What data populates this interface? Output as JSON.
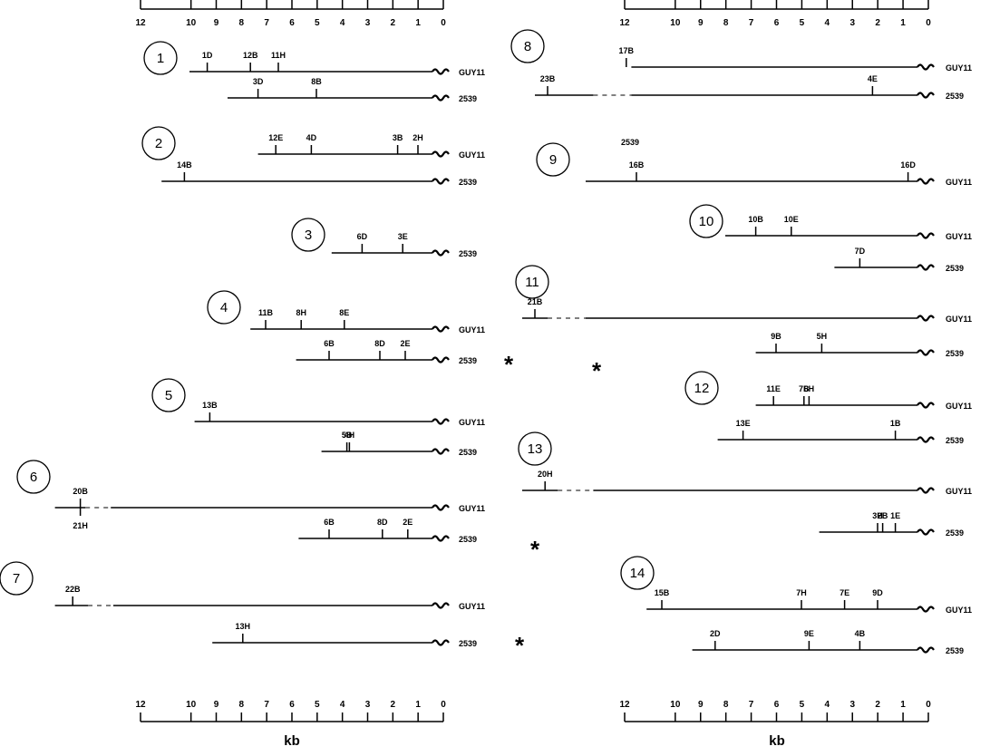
{
  "axis": {
    "unit": "kb",
    "tick_labels": [
      "12",
      "10",
      "9",
      "8",
      "7",
      "6",
      "5",
      "4",
      "3",
      "2",
      "1",
      "0"
    ],
    "tick_values": [
      12,
      10,
      9,
      8,
      7,
      6,
      5,
      4,
      3,
      2,
      1,
      0
    ]
  },
  "panels": [
    {
      "number": "1",
      "column": "left",
      "tracks": [
        {
          "strain": "GUY11",
          "start_kb": 10,
          "gap": false,
          "sites": [
            {
              "label": "1D",
              "kb": 9.3
            },
            {
              "label": "12B",
              "kb": 7.6
            },
            {
              "label": "11H",
              "kb": 6.5
            }
          ]
        },
        {
          "strain": "2539",
          "start_kb": 8.5,
          "gap": false,
          "sites": [
            {
              "label": "3D",
              "kb": 7.3
            },
            {
              "label": "8B",
              "kb": 5
            }
          ]
        }
      ]
    },
    {
      "number": "2",
      "column": "left",
      "tracks": [
        {
          "strain": "GUY11",
          "start_kb": 7.3,
          "gap": false,
          "sites": [
            {
              "label": "12E",
              "kb": 6.6
            },
            {
              "label": "4D",
              "kb": 5.2
            },
            {
              "label": "3B",
              "kb": 1.8
            },
            {
              "label": "2H",
              "kb": 1
            }
          ]
        },
        {
          "strain": "2539",
          "start_kb": 11.1,
          "gap": false,
          "sites": [
            {
              "label": "14B",
              "kb": 10.2
            }
          ]
        }
      ]
    },
    {
      "number": "3",
      "column": "left",
      "tracks": [
        {
          "strain": "2539",
          "start_kb": 4.4,
          "gap": false,
          "sites": [
            {
              "label": "6D",
              "kb": 3.2
            },
            {
              "label": "3E",
              "kb": 1.6
            }
          ]
        }
      ]
    },
    {
      "number": "4",
      "column": "left",
      "tracks": [
        {
          "strain": "GUY11",
          "start_kb": 7.6,
          "gap": false,
          "sites": [
            {
              "label": "11B",
              "kb": 7
            },
            {
              "label": "8H",
              "kb": 5.6
            },
            {
              "label": "8E",
              "kb": 3.9
            }
          ]
        },
        {
          "strain": "2539",
          "start_kb": 5.8,
          "gap": false,
          "sites": [
            {
              "label": "6B",
              "kb": 4.5
            },
            {
              "label": "8D",
              "kb": 2.5
            },
            {
              "label": "2E",
              "kb": 1.5
            }
          ]
        }
      ]
    },
    {
      "number": "5",
      "column": "left",
      "tracks": [
        {
          "strain": "GUY11",
          "start_kb": 9.8,
          "gap": false,
          "sites": [
            {
              "label": "13B",
              "kb": 9.2
            }
          ]
        },
        {
          "strain": "2539",
          "start_kb": 4.8,
          "gap": false,
          "sites": [
            {
              "label": "5B",
              "kb": 3.8
            },
            {
              "label": "4H",
              "kb": 3.7
            }
          ]
        }
      ]
    },
    {
      "number": "6",
      "column": "left",
      "tracks": [
        {
          "strain": "GUY11",
          "start_kb": 15.3,
          "gap": true,
          "gap_from_kb": 14.1,
          "gap_to_kb": 13.1,
          "sites": [
            {
              "label": "20B",
              "kb": 14.3
            },
            {
              "label": "21H",
              "kb": 14.3
            }
          ]
        },
        {
          "strain": "2539",
          "start_kb": 5.7,
          "gap": false,
          "sites": [
            {
              "label": "6B",
              "kb": 4.5
            },
            {
              "label": "8D",
              "kb": 2.4
            },
            {
              "label": "2E",
              "kb": 1.4
            }
          ]
        }
      ]
    },
    {
      "number": "7",
      "column": "left",
      "tracks": [
        {
          "strain": "GUY11",
          "start_kb": 15.3,
          "gap": true,
          "gap_from_kb": 14,
          "gap_to_kb": 13,
          "sites": [
            {
              "label": "22B",
              "kb": 14.6
            }
          ]
        },
        {
          "strain": "2539",
          "start_kb": 9.1,
          "gap": false,
          "sites": [
            {
              "label": "13H",
              "kb": 7.9
            }
          ]
        }
      ]
    },
    {
      "number": "8",
      "column": "right",
      "tracks": [
        {
          "strain": "GUY11",
          "start_kb": 11.7,
          "gap": false,
          "sites": [
            {
              "label": "17B",
              "kb": 11.9
            }
          ]
        },
        {
          "strain": "2539",
          "start_kb": 15.5,
          "gap": true,
          "gap_from_kb": 13.2,
          "gap_to_kb": 11.7,
          "sites": [
            {
              "label": "23B",
              "kb": 15
            },
            {
              "label": "4E",
              "kb": 2.2
            }
          ]
        }
      ]
    },
    {
      "number": "9",
      "column": "right",
      "strain_note": "2539",
      "tracks": [
        {
          "strain": "GUY11",
          "start_kb": 13.5,
          "gap": false,
          "sites": [
            {
              "label": "16B",
              "kb": 11.5
            },
            {
              "label": "16D",
              "kb": 0.8
            }
          ]
        }
      ]
    },
    {
      "number": "10",
      "column": "right",
      "tracks": [
        {
          "strain": "GUY11",
          "start_kb": 8,
          "gap": false,
          "sites": [
            {
              "label": "10B",
              "kb": 6.8
            },
            {
              "label": "10E",
              "kb": 5.4
            }
          ]
        },
        {
          "strain": "2539",
          "start_kb": 3.7,
          "gap": false,
          "sites": [
            {
              "label": "7D",
              "kb": 2.7
            }
          ]
        }
      ]
    },
    {
      "number": "11",
      "column": "right",
      "tracks": [
        {
          "strain": "GUY11",
          "start_kb": 16,
          "gap": true,
          "gap_from_kb": 15.0,
          "gap_to_kb": 13.5,
          "sites": [
            {
              "label": "21B",
              "kb": 15.5
            }
          ]
        },
        {
          "strain": "2539",
          "start_kb": 6.8,
          "gap": false,
          "sites": [
            {
              "label": "9B",
              "kb": 6
            },
            {
              "label": "5H",
              "kb": 4.2
            }
          ]
        }
      ]
    },
    {
      "number": "12",
      "column": "right",
      "tracks": [
        {
          "strain": "GUY11",
          "start_kb": 6.8,
          "gap": false,
          "sites": [
            {
              "label": "11E",
              "kb": 6.1
            },
            {
              "label": "7B",
              "kb": 4.9
            },
            {
              "label": "6H",
              "kb": 4.7
            }
          ]
        },
        {
          "strain": "2539",
          "start_kb": 8.3,
          "gap": false,
          "sites": [
            {
              "label": "13E",
              "kb": 7.3
            },
            {
              "label": "1B",
              "kb": 1.3
            }
          ]
        }
      ]
    },
    {
      "number": "13",
      "column": "right",
      "tracks": [
        {
          "strain": "GUY11",
          "start_kb": 16,
          "gap": true,
          "gap_from_kb": 14.6,
          "gap_to_kb": 13.2,
          "sites": [
            {
              "label": "20H",
              "kb": 15.1
            }
          ]
        },
        {
          "strain": "2539",
          "start_kb": 4.3,
          "gap": false,
          "sites": [
            {
              "label": "3H",
              "kb": 2
            },
            {
              "label": "2B",
              "kb": 1.8
            },
            {
              "label": "1E",
              "kb": 1.3
            }
          ]
        }
      ]
    },
    {
      "number": "14",
      "column": "right",
      "tracks": [
        {
          "strain": "GUY11",
          "start_kb": 11.1,
          "gap": false,
          "sites": [
            {
              "label": "15B",
              "kb": 10.5
            },
            {
              "label": "7H",
              "kb": 5
            },
            {
              "label": "7E",
              "kb": 3.3
            },
            {
              "label": "9D",
              "kb": 2
            }
          ]
        },
        {
          "strain": "2539",
          "start_kb": 9.3,
          "gap": false,
          "sites": [
            {
              "label": "2D",
              "kb": 8.4
            },
            {
              "label": "9E",
              "kb": 4.7
            },
            {
              "label": "4B",
              "kb": 2.7
            }
          ]
        }
      ]
    }
  ],
  "markers": [
    "*",
    "*",
    "*",
    "*"
  ]
}
